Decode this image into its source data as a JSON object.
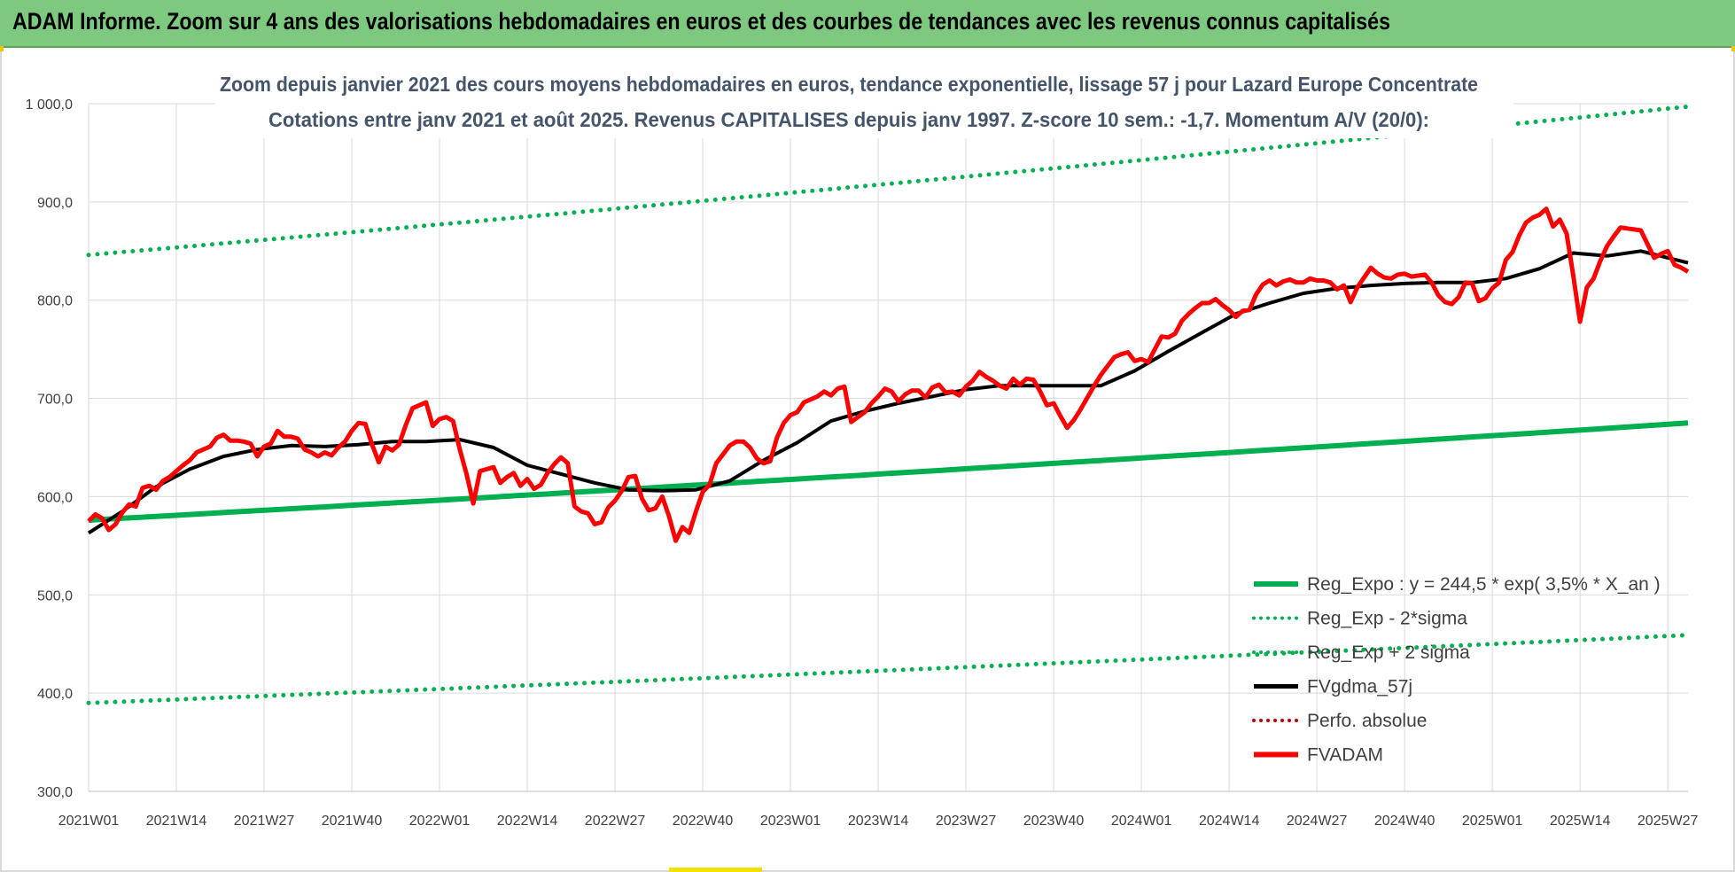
{
  "header": {
    "title": "ADAM Informe. Zoom sur 4 ans des valorisations hebdomadaires en euros et des courbes de tendances avec les revenus connus capitalisés"
  },
  "colors": {
    "header_bg": "#7dc97f",
    "reg_expo": "#00b050",
    "fvgdma": "#000000",
    "fvadam": "#ff0000",
    "perfo": "#c00000",
    "subtitle": "#44546a"
  },
  "chart_data": {
    "type": "line",
    "title": "Zoom depuis janvier 2021 des cours moyens hebdomadaires en euros, tendance exponentielle, lissage 57 j pour Lazard Europe Concentrate",
    "subtitle": "Cotations entre janv 2021 et août 2025. Revenus CAPITALISES depuis janv 1997. Z-score 10 sem.: -1,7. Momentum A/V (20/0):",
    "xlabel": "",
    "ylabel": "",
    "ylim": [
      300,
      1000
    ],
    "yticks": [
      "300,0",
      "400,0",
      "500,0",
      "600,0",
      "700,0",
      "800,0",
      "900,0",
      "1 000,0"
    ],
    "x_tick_labels": [
      "2021W01",
      "2021W14",
      "2021W27",
      "2021W40",
      "2022W01",
      "2022W14",
      "2022W27",
      "2022W40",
      "2023W01",
      "2023W14",
      "2023W27",
      "2023W40",
      "2024W01",
      "2024W14",
      "2024W27",
      "2024W40",
      "2025W01",
      "2025W14",
      "2025W27"
    ],
    "x_range_weeks": [
      0,
      237
    ],
    "grid": "vertical and horizontal",
    "legend_position": "bottom-right",
    "series": [
      {
        "name": "Reg_Expo : y = 244,5 * exp( 3,5% *  X_an )",
        "style": "solid-thick",
        "color": "#00b050",
        "x": [
          0,
          237
        ],
        "y": [
          576,
          675
        ],
        "curve": "exponential"
      },
      {
        "name": "Reg_Exp - 2*sigma",
        "style": "dotted",
        "color": "#00b050",
        "x": [
          0,
          237
        ],
        "y": [
          390,
          459
        ],
        "curve": "exponential"
      },
      {
        "name": "Reg_Exp + 2 sigma",
        "style": "dotted",
        "color": "#00b050",
        "x": [
          0,
          237
        ],
        "y": [
          846,
          997
        ],
        "curve": "exponential"
      },
      {
        "name": "FVgdma_57j",
        "style": "solid",
        "color": "#000000",
        "x": [
          0,
          5,
          10,
          15,
          20,
          25,
          30,
          35,
          40,
          45,
          50,
          55,
          60,
          65,
          70,
          75,
          80,
          85,
          90,
          95,
          100,
          105,
          110,
          115,
          120,
          125,
          130,
          135,
          140,
          145,
          150,
          155,
          160,
          165,
          170,
          175,
          180,
          185,
          190,
          195,
          200,
          205,
          210,
          215,
          220,
          225,
          230,
          237
        ],
        "y": [
          563,
          585,
          610,
          628,
          641,
          648,
          652,
          651,
          653,
          656,
          656,
          658,
          650,
          632,
          623,
          614,
          607,
          606,
          607,
          616,
          637,
          655,
          677,
          687,
          695,
          702,
          709,
          713,
          713,
          713,
          713,
          728,
          748,
          767,
          786,
          797,
          807,
          812,
          815,
          817,
          818,
          818,
          822,
          832,
          848,
          845,
          850,
          838
        ]
      },
      {
        "name": "Perfo. absolue",
        "style": "dotted",
        "color": "#c00000",
        "x": [],
        "y": []
      },
      {
        "name": "FVADAM",
        "style": "solid-thick",
        "color": "#ff0000",
        "x": [
          0,
          1,
          2,
          3,
          4,
          5,
          6,
          7,
          8,
          9,
          10,
          11,
          12,
          13,
          14,
          15,
          16,
          17,
          18,
          19,
          20,
          21,
          22,
          23,
          24,
          25,
          26,
          27,
          28,
          29,
          30,
          31,
          32,
          33,
          34,
          35,
          36,
          37,
          38,
          39,
          40,
          41,
          42,
          43,
          44,
          45,
          46,
          47,
          48,
          49,
          50,
          51,
          52,
          53,
          54,
          55,
          56,
          57,
          58,
          59,
          60,
          61,
          62,
          63,
          64,
          65,
          66,
          67,
          68,
          69,
          70,
          71,
          72,
          73,
          74,
          75,
          76,
          77,
          78,
          79,
          80,
          81,
          82,
          83,
          84,
          85,
          86,
          87,
          88,
          89,
          90,
          91,
          92,
          93,
          94,
          95,
          96,
          97,
          98,
          99,
          100,
          101,
          102,
          103,
          104,
          105,
          106,
          107,
          108,
          109,
          110,
          111,
          112,
          113,
          114,
          115,
          116,
          117,
          118,
          119,
          120,
          121,
          122,
          123,
          124,
          125,
          126,
          127,
          128,
          129,
          130,
          131,
          132,
          133,
          134,
          135,
          136,
          137,
          138,
          139,
          140,
          141,
          142,
          143,
          144,
          145,
          146,
          147,
          148,
          149,
          150,
          151,
          152,
          153,
          154,
          155,
          156,
          157,
          158,
          159,
          160,
          161,
          162,
          163,
          164,
          165,
          166,
          167,
          168,
          169,
          170,
          171,
          172,
          173,
          174,
          175,
          176,
          177,
          178,
          179,
          180,
          181,
          182,
          183,
          184,
          185,
          186,
          187,
          188,
          189,
          190,
          191,
          192,
          193,
          194,
          195,
          196,
          197,
          198,
          199,
          200,
          201,
          202,
          203,
          204,
          205,
          206,
          207,
          208,
          209,
          210,
          211,
          212,
          213,
          214,
          215,
          216,
          217,
          218,
          219,
          220,
          221,
          222,
          223,
          224,
          225,
          226,
          227,
          228,
          229,
          230,
          231,
          232,
          233,
          234,
          235,
          236,
          237
        ],
        "y": [
          575,
          582,
          578,
          566,
          572,
          584,
          592,
          590,
          609,
          611,
          607,
          616,
          620,
          626,
          632,
          637,
          645,
          648,
          651,
          660,
          663,
          657,
          657,
          656,
          654,
          641,
          651,
          654,
          667,
          661,
          661,
          659,
          648,
          645,
          641,
          645,
          642,
          650,
          656,
          667,
          675,
          674,
          653,
          635,
          651,
          647,
          653,
          673,
          690,
          693,
          696,
          672,
          679,
          681,
          677,
          648,
          623,
          593,
          626,
          628,
          630,
          614,
          620,
          624,
          611,
          618,
          608,
          612,
          624,
          633,
          640,
          634,
          590,
          585,
          583,
          572,
          574,
          589,
          596,
          606,
          620,
          621,
          598,
          586,
          588,
          600,
          580,
          555,
          569,
          563,
          585,
          605,
          612,
          634,
          643,
          652,
          656,
          656,
          650,
          639,
          634,
          636,
          660,
          675,
          683,
          686,
          696,
          699,
          702,
          707,
          703,
          710,
          712,
          676,
          681,
          686,
          695,
          702,
          710,
          707,
          697,
          704,
          708,
          708,
          701,
          711,
          714,
          706,
          707,
          703,
          712,
          718,
          727,
          722,
          718,
          713,
          710,
          720,
          714,
          720,
          719,
          707,
          693,
          695,
          682,
          670,
          678,
          689,
          701,
          713,
          724,
          733,
          742,
          745,
          747,
          738,
          740,
          737,
          750,
          763,
          762,
          766,
          779,
          786,
          792,
          797,
          797,
          801,
          795,
          790,
          783,
          789,
          790,
          806,
          816,
          820,
          815,
          819,
          821,
          818,
          818,
          822,
          820,
          820,
          818,
          811,
          815,
          798,
          813,
          823,
          833,
          827,
          823,
          822,
          826,
          827,
          824,
          825,
          826,
          818,
          805,
          798,
          796,
          803,
          818,
          817,
          799,
          802,
          812,
          818,
          841,
          849,
          866,
          879,
          884,
          887,
          893,
          875,
          882,
          868,
          825,
          778,
          813,
          822,
          840,
          855,
          865,
          874,
          873,
          872,
          871,
          857,
          843,
          847,
          850,
          836,
          833,
          829
        ]
      }
    ]
  }
}
